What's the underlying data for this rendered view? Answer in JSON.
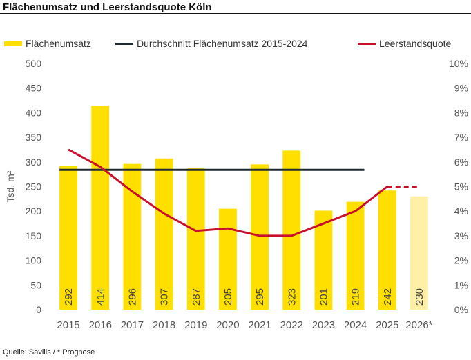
{
  "title": "Flächenumsatz und Leerstandsquote Köln",
  "source": "Quelle: Savills / * Prognose",
  "colors": {
    "bar": "#FFDF00",
    "bar_forecast": "#FFF0A8",
    "average_line": "#1f2a30",
    "vacancy_line": "#C8102E",
    "axis_text": "#555555"
  },
  "chart_data": {
    "type": "bar",
    "categories": [
      "2015",
      "2016",
      "2017",
      "2018",
      "2019",
      "2020",
      "2021",
      "2022",
      "2023",
      "2024",
      "2025",
      "2026*"
    ],
    "series": [
      {
        "name": "Flächenumsatz",
        "type": "bar",
        "axis": "left",
        "values": [
          292,
          414,
          296,
          307,
          287,
          205,
          295,
          323,
          201,
          219,
          242,
          230
        ],
        "labels": [
          "292",
          "414",
          "296",
          "307",
          "287",
          "205",
          "295",
          "323",
          "201",
          "219",
          "242",
          "230"
        ],
        "forecast_index": 11
      },
      {
        "name": "Durchschnitt Flächenumsatz 2015-2024",
        "type": "line",
        "axis": "left",
        "value": 284,
        "from": "2015",
        "to": "2024"
      },
      {
        "name": "Leerstandsquote",
        "type": "line",
        "axis": "right",
        "values": [
          6.5,
          5.8,
          4.8,
          3.9,
          3.2,
          3.3,
          3.0,
          3.0,
          3.5,
          4.0,
          5.0,
          5.0
        ],
        "dashed_from_index": 10
      }
    ],
    "ylabel": "Tsd. m²",
    "ylim": [
      0,
      500
    ],
    "yticks": [
      "0",
      "50",
      "100",
      "150",
      "200",
      "250",
      "300",
      "350",
      "400",
      "450",
      "500"
    ],
    "y2lim": [
      0,
      10
    ],
    "y2ticks": [
      "0%",
      "1%",
      "2%",
      "3%",
      "4%",
      "5%",
      "6%",
      "7%",
      "8%",
      "9%",
      "10%"
    ],
    "grid": false,
    "legend_position": "top"
  }
}
